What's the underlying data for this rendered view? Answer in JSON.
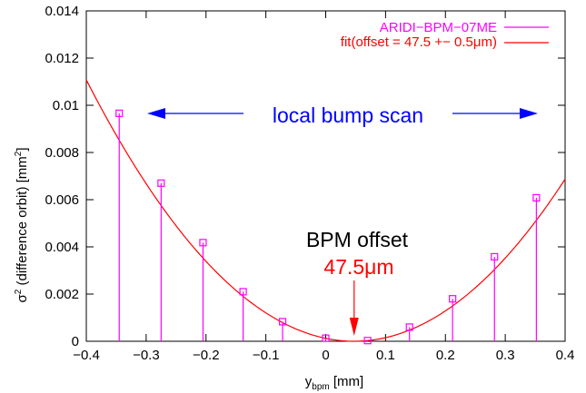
{
  "chart_data": {
    "type": "scatter",
    "title": "",
    "xlabel_main": "y",
    "xlabel_sub": "bpm",
    "xlabel_unit": " [mm]",
    "ylabel_sigma": "σ",
    "ylabel_power": "2",
    "ylabel_text": " (difference orbit) [mm",
    "ylabel_unit_power": "2",
    "ylabel_close": "]",
    "xlim": [
      -0.4,
      0.4
    ],
    "ylim": [
      0,
      0.014
    ],
    "xticks": [
      -0.4,
      -0.3,
      -0.2,
      -0.1,
      0,
      0.1,
      0.2,
      0.3,
      0.4
    ],
    "xtick_labels": [
      "−0.4",
      "−0.3",
      "−0.2",
      "−0.1",
      "0",
      "0.1",
      "0.2",
      "0.3",
      "0.4"
    ],
    "yticks": [
      0,
      0.002,
      0.004,
      0.006,
      0.008,
      0.01,
      0.012,
      0.014
    ],
    "ytick_labels": [
      "0",
      "0.002",
      "0.004",
      "0.006",
      "0.008",
      "0.01",
      "0.012",
      "0.014"
    ],
    "series": [
      {
        "name": "ARIDI−BPM−07ME",
        "color": "#ff00ff",
        "style": "impulses+squares",
        "x": [
          -0.345,
          -0.275,
          -0.205,
          -0.138,
          -0.072,
          0.0,
          0.07,
          0.14,
          0.212,
          0.282,
          0.352
        ],
        "y": [
          0.00966,
          0.0067,
          0.00418,
          0.0021,
          0.00083,
          0.00013,
          3e-05,
          0.0006,
          0.0018,
          0.00358,
          0.00608
        ]
      },
      {
        "name": "fit(offset = 47.5 +− 0.5μm)",
        "color": "#ff0000",
        "style": "line",
        "model": "a*(x - x0)^2",
        "a": 0.0553,
        "x0": 0.0475
      }
    ],
    "annotations": {
      "scan_label": "local bump scan",
      "scan_color": "#0000ff",
      "offset_label": "BPM offset",
      "offset_value": "47.5μm",
      "offset_value_color": "#ff0000",
      "arrow_color": "#ff0000"
    },
    "legend_position": "top-right",
    "grid": false
  }
}
